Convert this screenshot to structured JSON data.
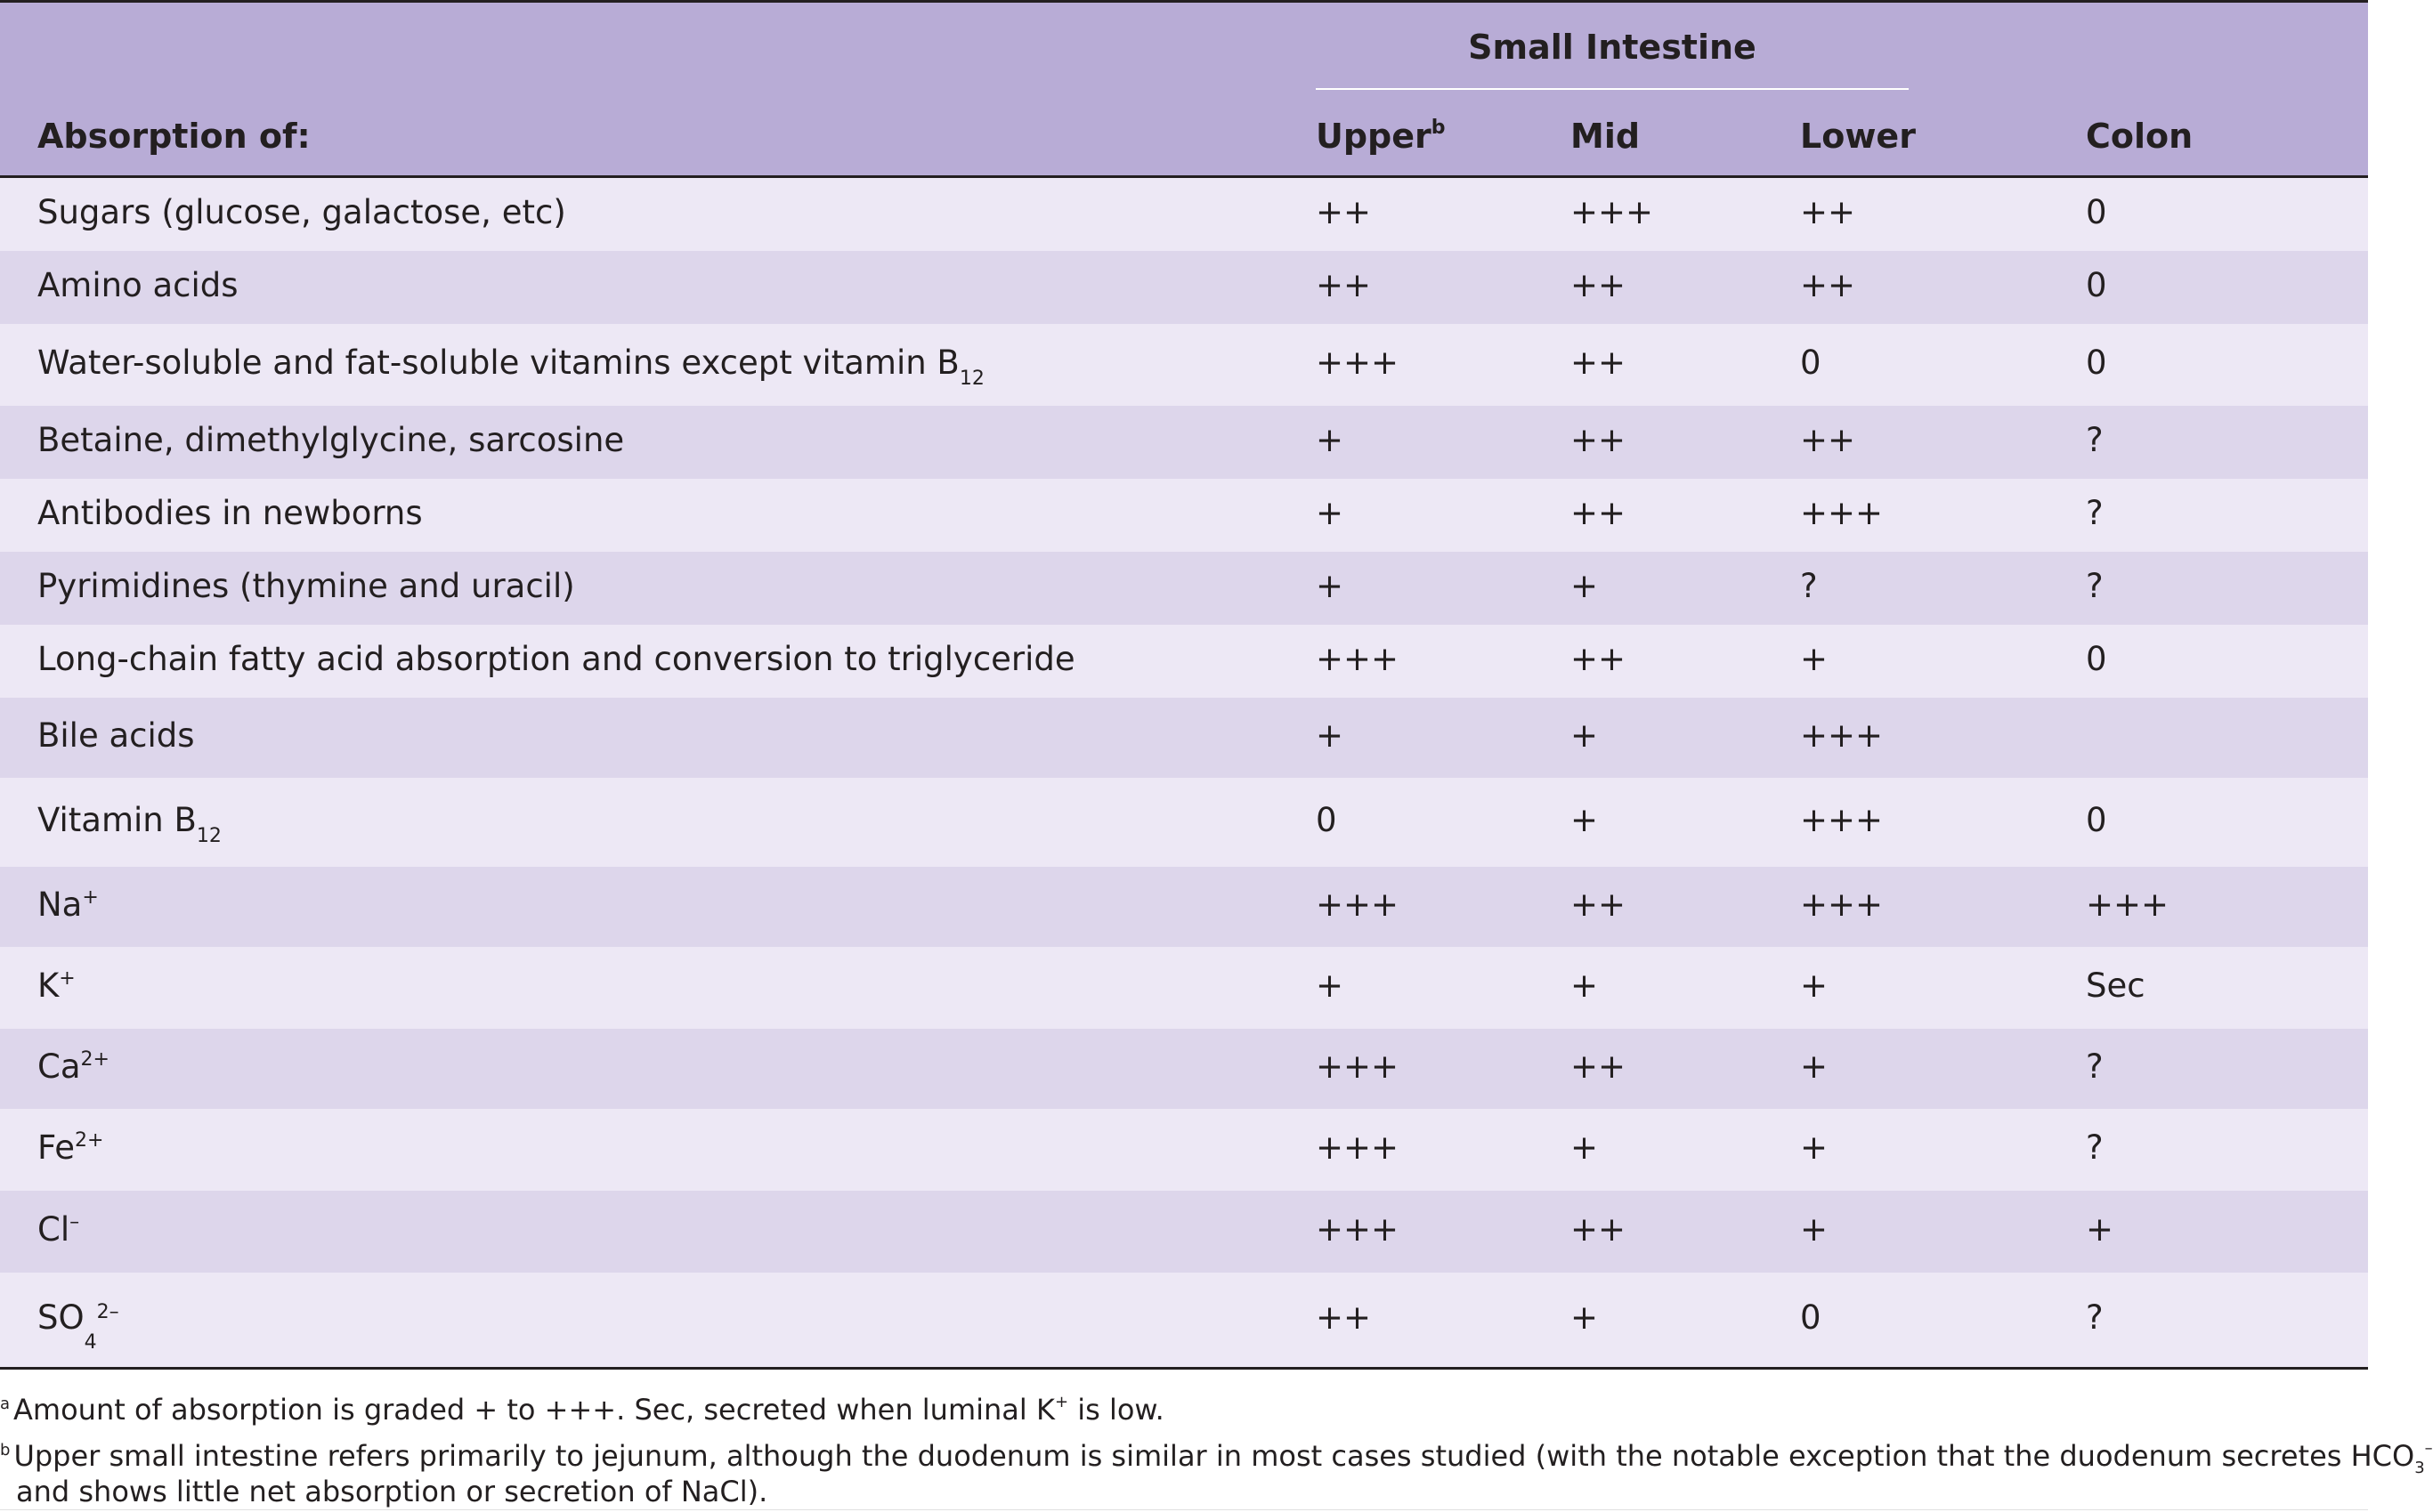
{
  "header": {
    "group_label": "Small Intestine",
    "col_absorption": "Absorption of:",
    "col_upper": "Upper",
    "col_upper_mark": "b",
    "col_mid": "Mid",
    "col_lower": "Lower",
    "col_colon": "Colon"
  },
  "rows": [
    {
      "label": "Sugars (glucose, galactose, etc)",
      "upper": "++",
      "mid": "+++",
      "lower": "++",
      "colon": "0"
    },
    {
      "label": "Amino acids",
      "upper": "++",
      "mid": "++",
      "lower": "++",
      "colon": "0"
    },
    {
      "label": "Water-soluble and fat-soluble vitamins except vitamin B",
      "label_sub": "12",
      "upper": "+++",
      "mid": "++",
      "lower": "0",
      "colon": "0"
    },
    {
      "label": "Betaine, dimethylglycine, sarcosine",
      "upper": "+",
      "mid": "++",
      "lower": "++",
      "colon": "?"
    },
    {
      "label": "Antibodies in newborns",
      "upper": "+",
      "mid": "++",
      "lower": "+++",
      "colon": "?"
    },
    {
      "label": "Pyrimidines (thymine and uracil)",
      "upper": "+",
      "mid": "+",
      "lower": "?",
      "colon": "?"
    },
    {
      "label": "Long-chain fatty acid absorption and conversion to triglyceride",
      "upper": "+++",
      "mid": "++",
      "lower": "+",
      "colon": "0"
    },
    {
      "label": "Bile acids",
      "upper": "+",
      "mid": "+",
      "lower": "+++",
      "colon": ""
    },
    {
      "label": "Vitamin B",
      "label_sub": "12",
      "upper": "0",
      "mid": "+",
      "lower": "+++",
      "colon": "0"
    },
    {
      "label": "Na",
      "label_sup": "+",
      "upper": "+++",
      "mid": "++",
      "lower": "+++",
      "colon": "+++"
    },
    {
      "label": "K",
      "label_sup": "+",
      "upper": "+",
      "mid": "+",
      "lower": "+",
      "colon": "Sec"
    },
    {
      "label": "Ca",
      "label_sup": "2+",
      "upper": "+++",
      "mid": "++",
      "lower": "+",
      "colon": "?"
    },
    {
      "label": "Fe",
      "label_sup": "2+",
      "upper": "+++",
      "mid": "+",
      "lower": "+",
      "colon": "?"
    },
    {
      "label": "Cl",
      "label_sup": "–",
      "upper": "+++",
      "mid": "++",
      "lower": "+",
      "colon": "+"
    },
    {
      "label": "SO",
      "label_sub": "4",
      "label_sup": "2–",
      "upper": "++",
      "mid": "+",
      "lower": "0",
      "colon": "?"
    }
  ],
  "footnotes": {
    "a_mark": "a",
    "a_text1": "Amount of absorption is graded + to +++. Sec, secreted when luminal K",
    "a_sup": "+",
    "a_text2": " is low.",
    "b_mark": "b",
    "b_line1": "Upper small intestine refers primarily to jejunum, although the duodenum is similar in most cases studied (with the notable exception that the duodenum secretes HCO",
    "b_sub": "3",
    "b_sup": "–",
    "b_line2": "and shows little net absorption or secretion of NaCl)."
  },
  "colors": {
    "header_bg": "#b8acd6",
    "row_light": "#ede8f5",
    "row_dark": "#ddd6eb",
    "rule": "#231f20"
  }
}
